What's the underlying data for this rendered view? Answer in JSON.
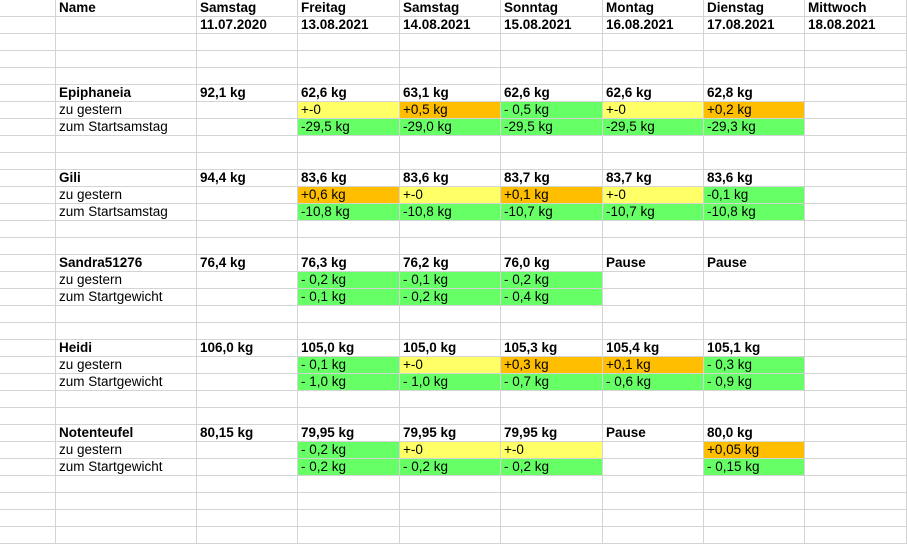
{
  "colors": {
    "yellow": "#ffff66",
    "orange": "#ffbf00",
    "green": "#66ff66",
    "grid": "#d4d4d4"
  },
  "header": {
    "name_label": "Name",
    "days": [
      "Samstag",
      "Freitag",
      "Samstag",
      "Sonntag",
      "Montag",
      "Dienstag",
      "Mittwoch"
    ],
    "dates": [
      "11.07.2020",
      "13.08.2021",
      "14.08.2021",
      "15.08.2021",
      "16.08.2021",
      "17.08.2021",
      "18.08.2021"
    ]
  },
  "participants": [
    {
      "name": "Epiphaneia",
      "weights": [
        "92,1 kg",
        "62,6 kg",
        "63,1 kg",
        "62,6 kg",
        "62,6 kg",
        "62,8 kg",
        ""
      ],
      "rows": [
        {
          "label": "zu gestern",
          "values": [
            "",
            "+-0",
            "+0,5 kg",
            "- 0,5 kg",
            "+-0",
            "+0,2 kg",
            ""
          ],
          "fills": [
            "",
            "y",
            "o",
            "g",
            "y",
            "o",
            ""
          ]
        },
        {
          "label": "zum Startsamstag",
          "values": [
            "",
            "-29,5 kg",
            "-29,0 kg",
            "-29,5 kg",
            "-29,5 kg",
            "-29,3 kg",
            ""
          ],
          "fills": [
            "",
            "g",
            "g",
            "g",
            "g",
            "g",
            ""
          ]
        }
      ]
    },
    {
      "name": "Gili",
      "weights": [
        "94,4 kg",
        "83,6 kg",
        "83,6 kg",
        "83,7 kg",
        "83,7 kg",
        "83,6 kg",
        ""
      ],
      "rows": [
        {
          "label": "zu gestern",
          "values": [
            "",
            "+0,6 kg",
            "+-0",
            "+0,1 kg",
            "+-0",
            "-0,1 kg",
            ""
          ],
          "fills": [
            "",
            "o",
            "y",
            "o",
            "y",
            "g",
            ""
          ]
        },
        {
          "label": "zum Startsamstag",
          "values": [
            "",
            "-10,8 kg",
            "-10,8 kg",
            "-10,7 kg",
            "-10,7 kg",
            "-10,8 kg",
            ""
          ],
          "fills": [
            "",
            "g",
            "g",
            "g",
            "g",
            "g",
            ""
          ]
        }
      ]
    },
    {
      "name": "Sandra51276",
      "weights": [
        "76,4 kg",
        "76,3 kg",
        "76,2 kg",
        "76,0 kg",
        "Pause",
        "Pause",
        ""
      ],
      "rows": [
        {
          "label": "zu gestern",
          "values": [
            "",
            "- 0,2 kg",
            "- 0,1 kg",
            "- 0,2 kg",
            "",
            "",
            ""
          ],
          "fills": [
            "",
            "g",
            "g",
            "g",
            "",
            "",
            ""
          ]
        },
        {
          "label": "zum Startgewicht",
          "values": [
            "",
            "- 0,1 kg",
            "- 0,2 kg",
            "- 0,4 kg",
            "",
            "",
            ""
          ],
          "fills": [
            "",
            "g",
            "g",
            "g",
            "",
            "",
            ""
          ]
        }
      ]
    },
    {
      "name": "Heidi",
      "weights": [
        "106,0 kg",
        "105,0 kg",
        "105,0 kg",
        "105,3 kg",
        "105,4 kg",
        "105,1 kg",
        ""
      ],
      "rows": [
        {
          "label": "zu gestern",
          "values": [
            "",
            "- 0,1 kg",
            "+-0",
            "+0,3 kg",
            "+0,1 kg",
            "- 0,3 kg",
            ""
          ],
          "fills": [
            "",
            "g",
            "y",
            "o",
            "o",
            "g",
            ""
          ]
        },
        {
          "label": "zum Startgewicht",
          "values": [
            "",
            "- 1,0 kg",
            "- 1,0 kg",
            "- 0,7 kg",
            "- 0,6 kg",
            "- 0,9 kg",
            ""
          ],
          "fills": [
            "",
            "g",
            "g",
            "g",
            "g",
            "g",
            ""
          ]
        }
      ]
    },
    {
      "name": "Notenteufel",
      "weights": [
        "80,15 kg",
        "79,95 kg",
        "79,95 kg",
        "79,95 kg",
        "Pause",
        "80,0 kg",
        ""
      ],
      "rows": [
        {
          "label": "zu gestern",
          "values": [
            "",
            "- 0,2 kg",
            "+-0",
            "+-0",
            "",
            "+0,05 kg",
            ""
          ],
          "fills": [
            "",
            "g",
            "y",
            "y",
            "",
            "o",
            ""
          ]
        },
        {
          "label": "zum Startgewicht",
          "values": [
            "",
            "- 0,2 kg",
            "- 0,2 kg",
            "- 0,2 kg",
            "",
            "- 0,15 kg",
            ""
          ],
          "fills": [
            "",
            "g",
            "g",
            "g",
            "",
            "g",
            ""
          ]
        }
      ]
    }
  ]
}
